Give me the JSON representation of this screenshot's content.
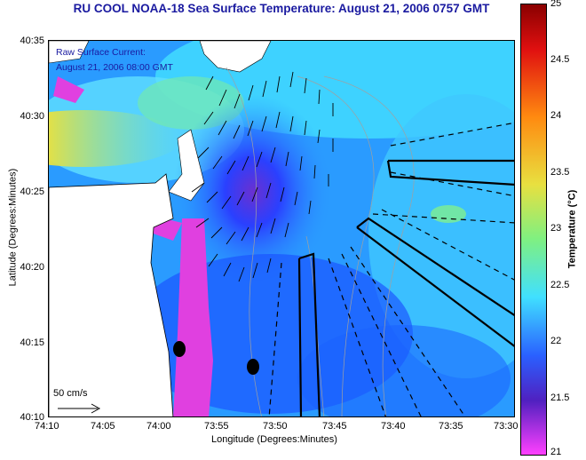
{
  "title": "RU COOL  NOAA-18  Sea Surface Temperature:  August 21, 2006 0757 GMT",
  "legend": {
    "line1": "Raw Surface Current:",
    "line2": "August 21, 2006 08:00 GMT"
  },
  "scale_label": "50 cm/s",
  "xlabel": "Longitude (Degrees:Minutes)",
  "ylabel": "Latitude (Degrees:Minutes)",
  "x_ticks": [
    "74:10",
    "74:05",
    "74:00",
    "73:55",
    "73:50",
    "73:45",
    "73:40",
    "73:35",
    "73:30"
  ],
  "y_ticks": [
    "40:35",
    "40:30",
    "40:25",
    "40:20",
    "40:15",
    "40:10"
  ],
  "colorbar": {
    "label": "Temperature (°C)",
    "ticks": [
      "25",
      "24.5",
      "24",
      "23.5",
      "23",
      "22.5",
      "22",
      "21.5",
      "21"
    ],
    "range": [
      21,
      25
    ]
  },
  "colors": {
    "title": "#1a1aa0",
    "land": "#ffffff",
    "water_warm": "#ffa020",
    "water_mid": "#40e0ff",
    "water_cool": "#1a40ff",
    "water_cold": "#ff40e0"
  }
}
